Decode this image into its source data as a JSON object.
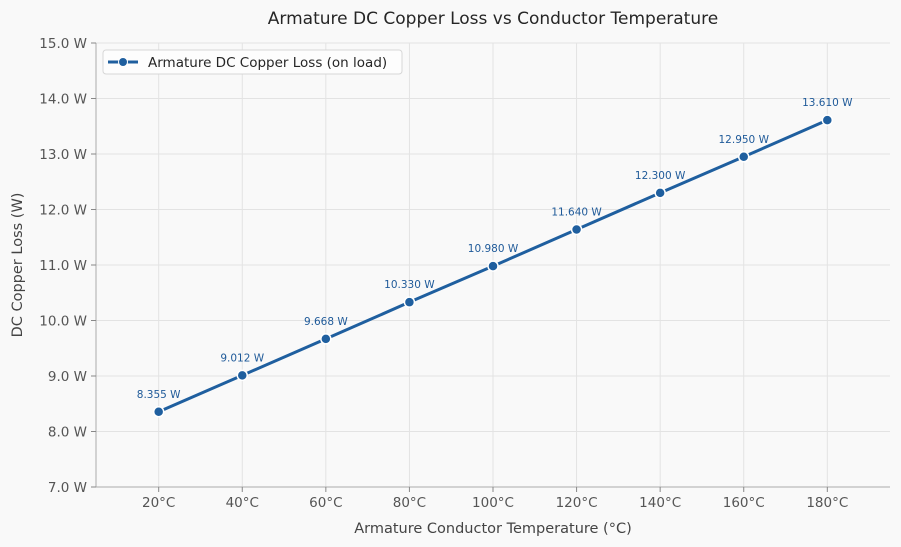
{
  "chart_data": {
    "type": "line",
    "title": "Armature DC Copper Loss vs Conductor Temperature",
    "xlabel": "Armature Conductor Temperature (°C)",
    "ylabel": "DC Copper Loss (W)",
    "x": [
      20,
      40,
      60,
      80,
      100,
      120,
      140,
      160,
      180
    ],
    "x_tick_labels": [
      "20°C",
      "40°C",
      "60°C",
      "80°C",
      "100°C",
      "120°C",
      "140°C",
      "160°C",
      "180°C"
    ],
    "xlim": [
      5,
      195
    ],
    "ylim": [
      7,
      15
    ],
    "y_ticks": [
      7,
      8,
      9,
      10,
      11,
      12,
      13,
      14,
      15
    ],
    "y_tick_labels": [
      "7.0 W",
      "8.0 W",
      "9.0 W",
      "10.0 W",
      "11.0 W",
      "12.0 W",
      "13.0 W",
      "14.0 W",
      "15.0 W"
    ],
    "series": [
      {
        "name": "Armature DC Copper Loss (on load)",
        "values": [
          8.355,
          9.012,
          9.668,
          10.33,
          10.98,
          11.64,
          12.3,
          12.95,
          13.61
        ],
        "data_labels": [
          "8.355 W",
          "9.012 W",
          "9.668 W",
          "10.330 W",
          "10.980 W",
          "11.640 W",
          "12.300 W",
          "12.950 W",
          "13.610 W"
        ],
        "color": "#1f5f9f"
      }
    ],
    "grid": true,
    "legend_position": "top-left"
  }
}
